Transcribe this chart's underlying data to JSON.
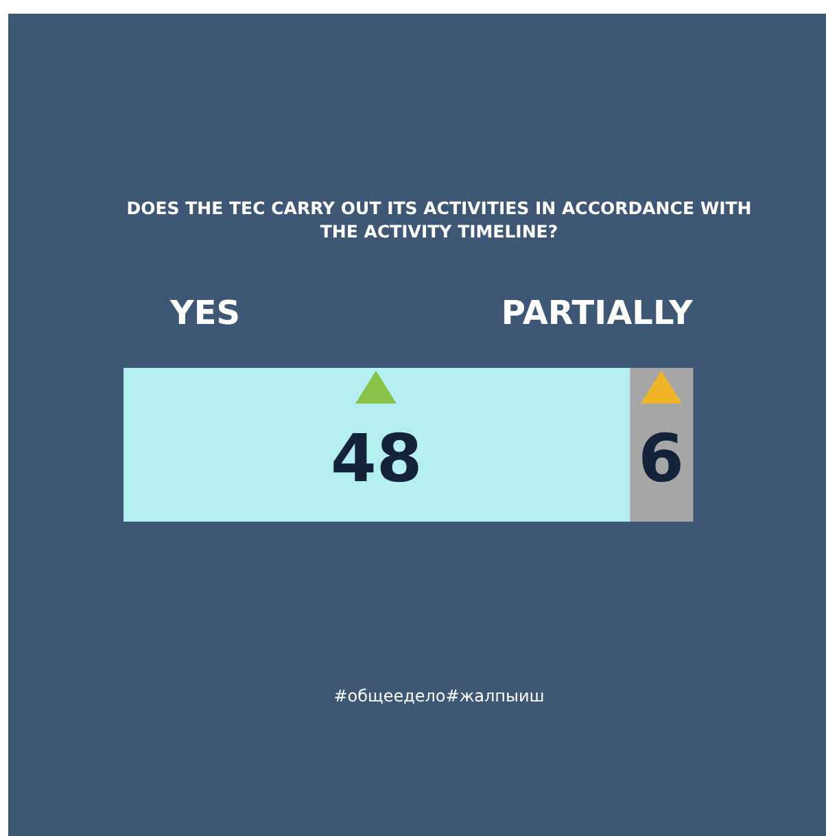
{
  "chart_data": {
    "type": "bar",
    "orientation": "horizontal",
    "stacked": true,
    "title": "DOES THE TEC CARRY OUT ITS ACTIVITIES IN ACCORDANCE WITH THE ACTIVITY TIMELINE?",
    "categories": [
      null
    ],
    "series": [
      {
        "name": "YES",
        "color": "#b3eff0",
        "values": [
          48
        ]
      },
      {
        "name": "PARTIALLY",
        "color": "#a6a6a6",
        "values": [
          6
        ]
      }
    ],
    "data_labels": true,
    "tick_labels": false,
    "annotations": [
      "#общеедело#жалпыиш"
    ]
  }
}
